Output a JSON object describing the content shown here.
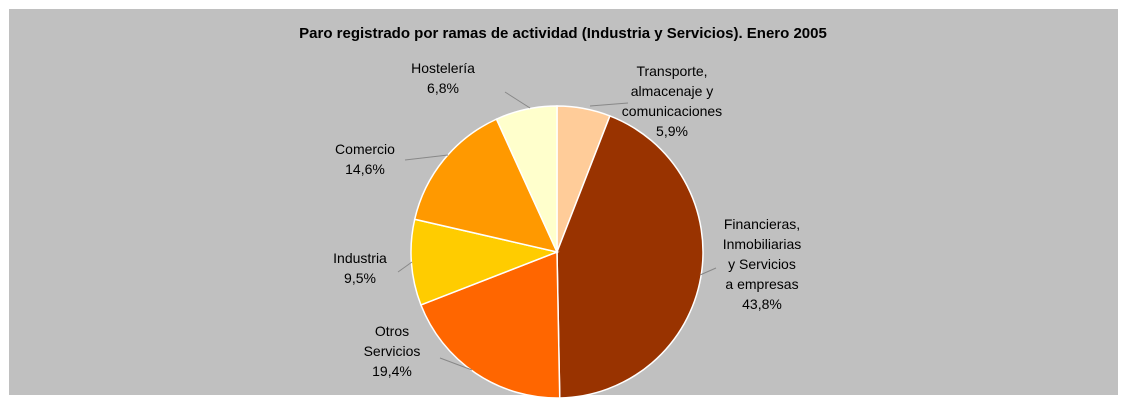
{
  "chart_data": {
    "type": "pie",
    "title": "Paro registrado por ramas de actividad (Industria y Servicios). Enero 2005",
    "categories": [
      "Transporte,\nalmacenaje y\ncomunicaciones",
      "Financieras,\nInmobiliarias\ny Servicios\na empresas",
      "Otros\nServicios",
      "Industria",
      "Comercio",
      "Hostelería"
    ],
    "values": [
      5.9,
      43.8,
      19.4,
      9.5,
      14.6,
      6.8
    ],
    "value_labels": [
      "5,9%",
      "43,8%",
      "19,4%",
      "9,5%",
      "14,6%",
      "6,8%"
    ],
    "colors": [
      "#ffcc99",
      "#993300",
      "#ff6600",
      "#ffcc00",
      "#ff9900",
      "#ffffcc"
    ]
  }
}
